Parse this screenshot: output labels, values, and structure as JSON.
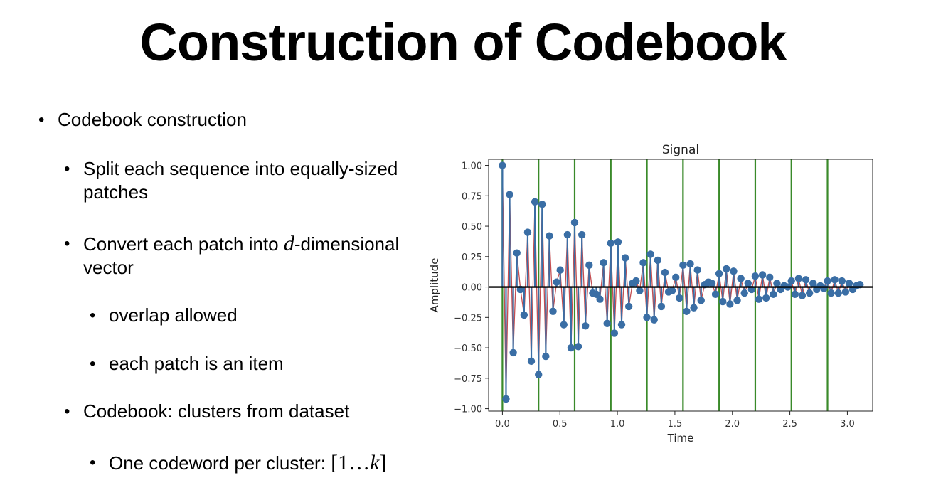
{
  "slide": {
    "title": "Construction of Codebook",
    "bullets": {
      "b1": "Codebook construction",
      "b2": "Split each sequence into equally-sized patches",
      "b3_pre": "Convert each patch into ",
      "b3_var": "d",
      "b3_post": "-dimensional vector",
      "b4": "overlap allowed",
      "b5": "each patch is an item",
      "b6": "Codebook: clusters from dataset",
      "b7_pre": "One codeword per cluster: ",
      "b7_math_open": "[1…",
      "b7_math_var": "k",
      "b7_math_close": "]"
    },
    "bullet_glyph": "•"
  },
  "chart_data": {
    "type": "line",
    "title": "Signal",
    "xlabel": "Time",
    "ylabel": "Amplitude",
    "xlim": [
      -0.12,
      3.22
    ],
    "ylim": [
      -1.02,
      1.05
    ],
    "xticks": [
      "0.0",
      "0.5",
      "1.0",
      "1.5",
      "2.0",
      "2.5",
      "3.0"
    ],
    "yticks": [
      "1.00",
      "0.75",
      "0.50",
      "0.25",
      "0.00",
      "−0.25",
      "−0.50",
      "−0.75",
      "−1.00"
    ],
    "grid": false,
    "legend": "none",
    "colors": {
      "line": "#c44e52",
      "markers": "#3a6ea5",
      "vlines": "#3a8a2a",
      "zero": "#000000"
    },
    "vlines_x": [
      0.0,
      0.3142,
      0.6283,
      0.9425,
      1.2566,
      1.5708,
      1.885,
      2.1991,
      2.5133,
      2.8274
    ],
    "series": [
      {
        "x": [
          0.0,
          0.0314,
          0.0628,
          0.0942,
          0.1257,
          0.1571,
          0.1885,
          0.2199,
          0.2513,
          0.2827,
          0.3142,
          0.3456,
          0.377,
          0.4084,
          0.4398,
          0.4712,
          0.5027,
          0.5341,
          0.5655,
          0.5969,
          0.6283,
          0.6597,
          0.6912,
          0.7226,
          0.754,
          0.7854,
          0.8168,
          0.8482,
          0.8796,
          0.9111,
          0.9425,
          0.9739,
          1.0053,
          1.0367,
          1.0681,
          1.0996,
          1.131,
          1.1624,
          1.1938,
          1.2252,
          1.2566,
          1.2881,
          1.3195,
          1.3509,
          1.3823,
          1.4137,
          1.4451,
          1.4765,
          1.508,
          1.5394,
          1.5708,
          1.6022,
          1.6336,
          1.665,
          1.6965,
          1.7279,
          1.7593,
          1.7907,
          1.8221,
          1.8535,
          1.885,
          1.9164,
          1.9478,
          1.9792,
          2.0106,
          2.042,
          2.0735,
          2.1049,
          2.1363,
          2.1677,
          2.1991,
          2.2305,
          2.2619,
          2.2934,
          2.3248,
          2.3562,
          2.3876,
          2.419,
          2.4504,
          2.4819,
          2.5133,
          2.5447,
          2.5761,
          2.6075,
          2.6389,
          2.6704,
          2.7018,
          2.7332,
          2.7646,
          2.796,
          2.8274,
          2.8588,
          2.8903,
          2.9217,
          2.9531,
          2.9845,
          3.0159,
          3.0473,
          3.0788,
          3.1102
        ],
        "y": [
          1.0,
          -0.92,
          0.76,
          -0.54,
          0.28,
          -0.02,
          -0.23,
          0.45,
          -0.61,
          0.7,
          -0.72,
          0.68,
          -0.57,
          0.42,
          -0.2,
          0.04,
          0.14,
          -0.31,
          0.43,
          -0.5,
          0.53,
          -0.49,
          0.43,
          -0.32,
          0.18,
          -0.05,
          -0.06,
          -0.1,
          0.2,
          -0.3,
          0.36,
          -0.38,
          0.37,
          -0.31,
          0.24,
          -0.16,
          0.03,
          0.05,
          -0.03,
          0.2,
          -0.25,
          0.27,
          -0.27,
          0.22,
          -0.16,
          0.12,
          -0.04,
          -0.03,
          0.08,
          -0.09,
          0.18,
          -0.2,
          0.19,
          -0.17,
          0.14,
          -0.11,
          0.02,
          0.04,
          0.03,
          -0.06,
          0.11,
          -0.12,
          0.15,
          -0.14,
          0.13,
          -0.11,
          0.07,
          -0.05,
          0.03,
          -0.02,
          0.09,
          -0.1,
          0.1,
          -0.09,
          0.08,
          -0.06,
          0.03,
          -0.02,
          0.01,
          0.0,
          0.05,
          -0.06,
          0.07,
          -0.07,
          0.06,
          -0.05,
          0.03,
          -0.02,
          0.01,
          -0.01,
          0.05,
          -0.05,
          0.06,
          -0.05,
          0.05,
          -0.04,
          0.03,
          -0.02,
          0.01,
          0.02
        ]
      }
    ]
  }
}
